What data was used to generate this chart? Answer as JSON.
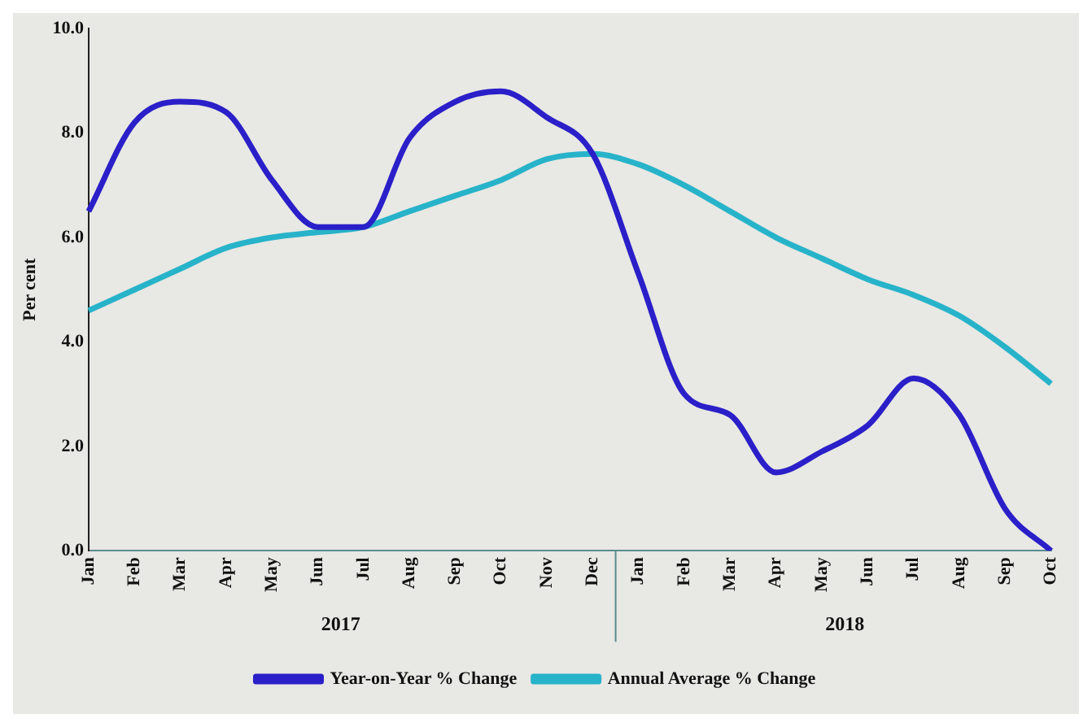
{
  "chart_data": {
    "type": "line",
    "ylabel": "Per cent",
    "categories": [
      "Jan",
      "Feb",
      "Mar",
      "Apr",
      "May",
      "Jun",
      "Jul",
      "Aug",
      "Sep",
      "Oct",
      "Nov",
      "Dec",
      "Jan",
      "Feb",
      "Mar",
      "Apr",
      "May",
      "Jun",
      "Jul",
      "Aug",
      "Sep",
      "Oct"
    ],
    "series": [
      {
        "name": "Year-on-Year % Change",
        "color": "#2a1fc8",
        "values": [
          6.5,
          8.2,
          8.6,
          8.4,
          7.1,
          6.2,
          6.2,
          7.9,
          8.6,
          8.8,
          8.3,
          7.6,
          5.3,
          3.0,
          2.6,
          1.5,
          1.9,
          2.4,
          3.3,
          2.6,
          0.8,
          0.0
        ]
      },
      {
        "name": "Annual Average % Change",
        "color": "#27b3c9",
        "values": [
          4.6,
          5.0,
          5.4,
          5.8,
          6.0,
          6.1,
          6.2,
          6.5,
          6.8,
          7.1,
          7.5,
          7.6,
          7.4,
          7.0,
          6.5,
          6.0,
          5.6,
          5.2,
          4.9,
          4.5,
          3.9,
          3.2
        ]
      }
    ],
    "ylim": [
      0,
      10
    ],
    "yticks": [
      {
        "value": 0,
        "label": "0.0"
      },
      {
        "value": 2,
        "label": "2.0"
      },
      {
        "value": 4,
        "label": "4.0"
      },
      {
        "value": 6,
        "label": "6.0"
      },
      {
        "value": 8,
        "label": "8.0"
      },
      {
        "value": 10,
        "label": "10.0"
      }
    ],
    "annotations": [
      "2017",
      "2018"
    ],
    "grid": false,
    "legend": "bottom",
    "marker": "none",
    "line_style": "solid"
  }
}
